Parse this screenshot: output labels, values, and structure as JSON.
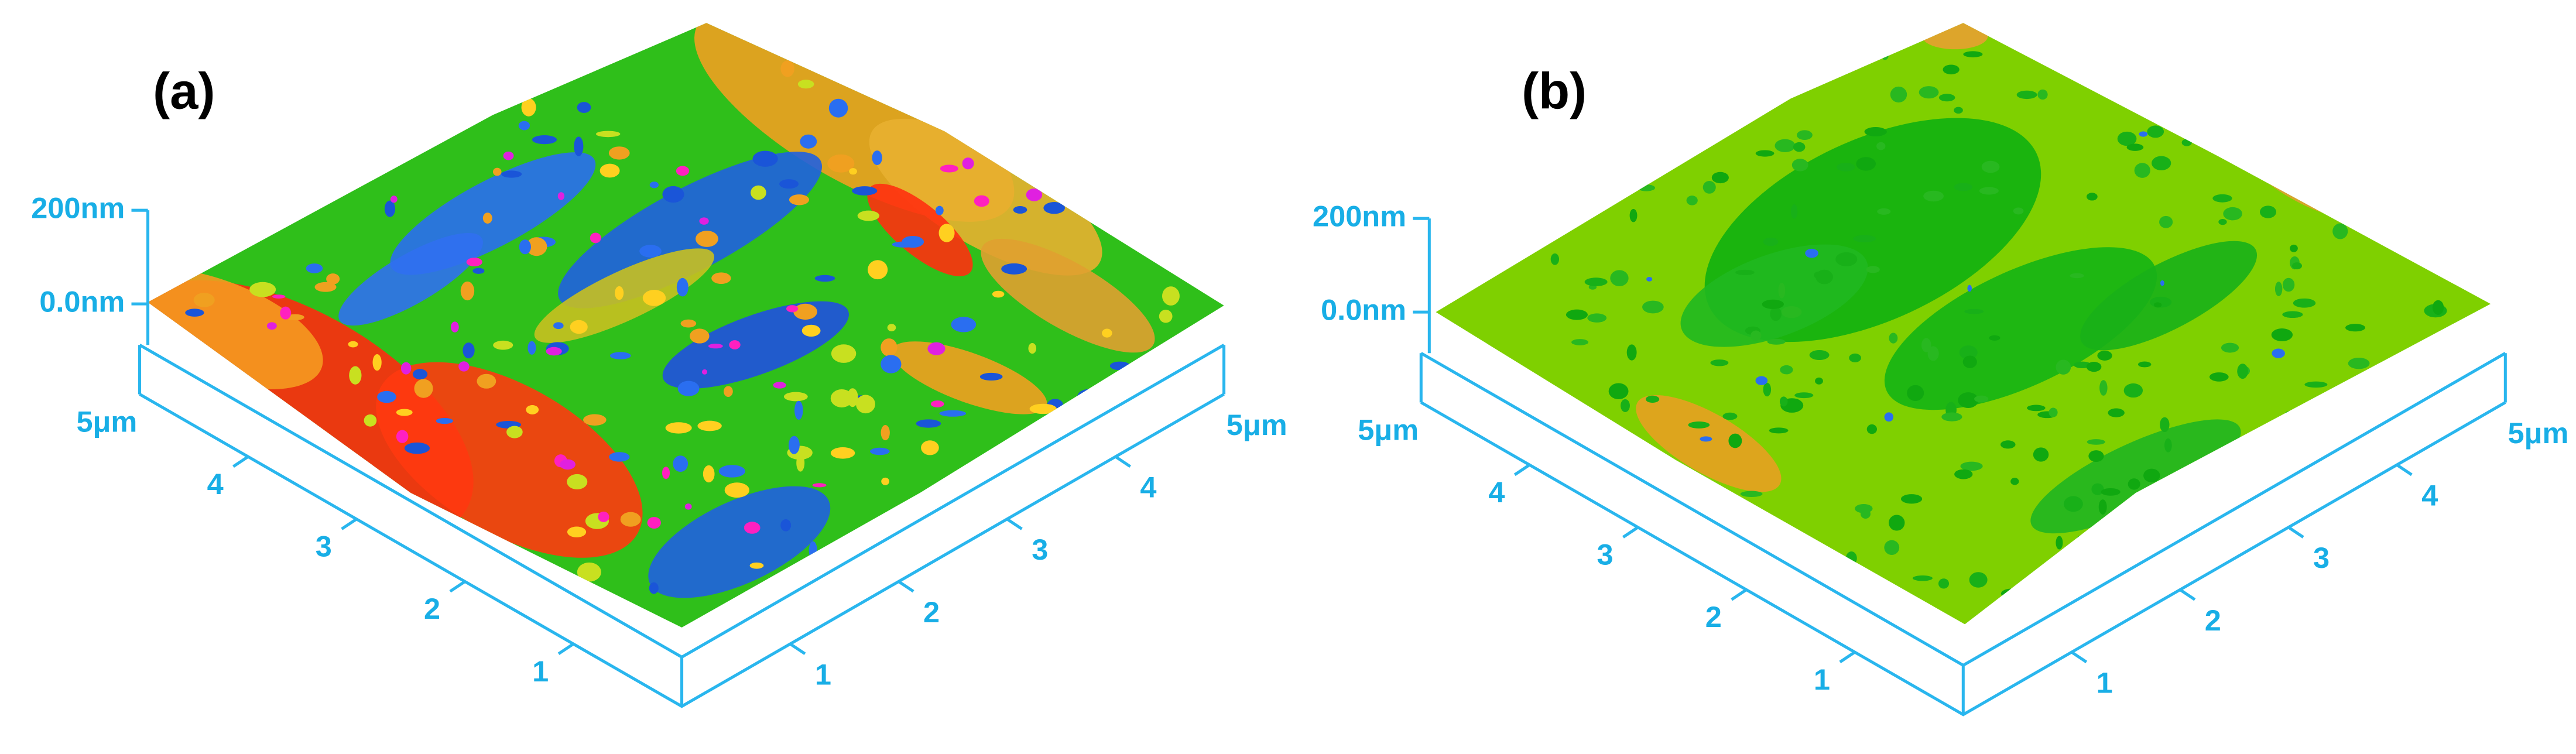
{
  "panels": [
    {
      "label": "(a)",
      "z_axis": [
        "200nm",
        "0.0nm"
      ],
      "left_axis": [
        "1",
        "2",
        "3",
        "4",
        "5μm"
      ],
      "right_axis": [
        "1",
        "2",
        "3",
        "4",
        "5μm"
      ]
    },
    {
      "label": "(b)",
      "z_axis": [
        "200nm",
        "0.0nm"
      ],
      "left_axis": [
        "1",
        "2",
        "3",
        "4",
        "5μm"
      ],
      "right_axis": [
        "1",
        "2",
        "3",
        "4",
        "5μm"
      ]
    }
  ]
}
